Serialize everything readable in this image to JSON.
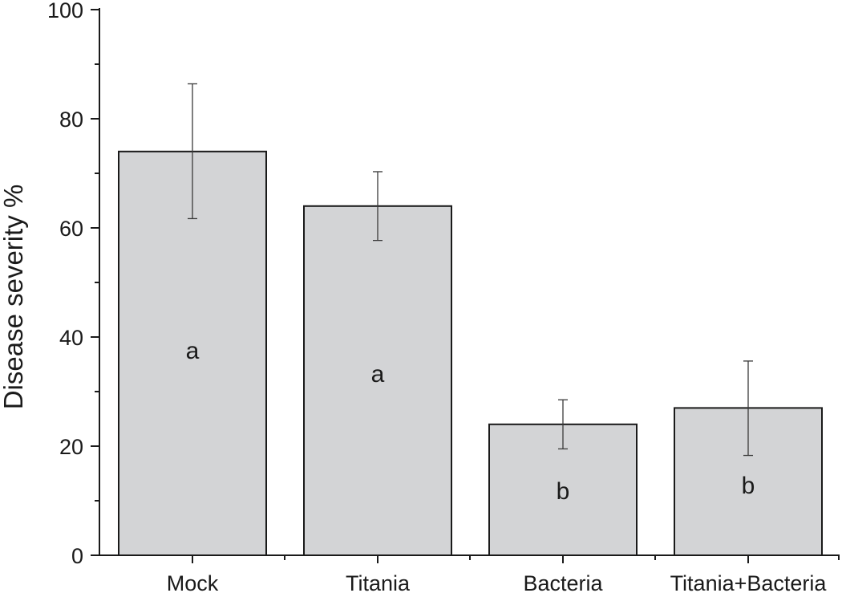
{
  "chart_data": {
    "type": "bar",
    "categories": [
      "Mock",
      "Titania",
      "Bacteria",
      "Titania+Bacteria"
    ],
    "values": [
      74,
      64,
      24,
      27
    ],
    "error_low": [
      61.7,
      57.7,
      19.5,
      18.3
    ],
    "error_high": [
      86.4,
      70.3,
      28.5,
      35.6
    ],
    "significance_labels": [
      "a",
      "a",
      "b",
      "b"
    ],
    "title": "",
    "xlabel": "",
    "ylabel": "Disease severity %",
    "ylim": [
      0,
      100
    ],
    "yticks": [
      0,
      20,
      40,
      60,
      80,
      100
    ],
    "yticklabels": [
      "0",
      "20",
      "40",
      "60",
      "80",
      "100"
    ],
    "grid": false,
    "legend": "none",
    "colors": {
      "bar_fill": "#d3d4d6",
      "bar_edge": "#1a1a1a",
      "axis": "#1a1a1a",
      "error_bar": "#3a3a3a"
    }
  }
}
